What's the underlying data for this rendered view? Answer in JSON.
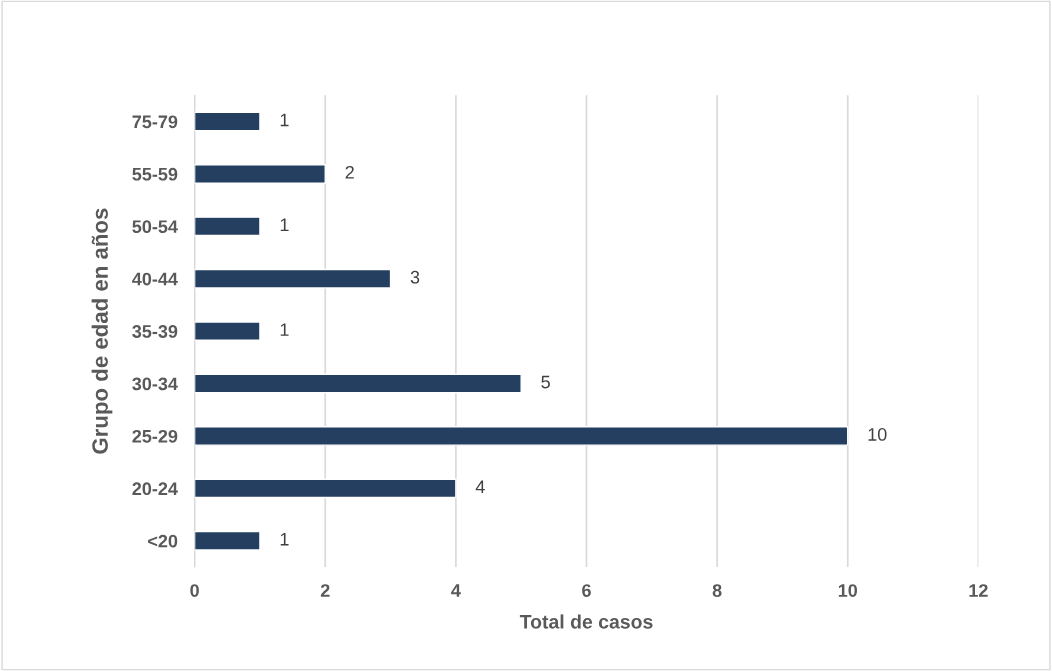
{
  "chart_data": {
    "type": "bar",
    "orientation": "horizontal",
    "xlabel": "Total de casos",
    "ylabel": "Grupo de edad en años",
    "categories": [
      "75-79",
      "55-59",
      "50-54",
      "40-44",
      "35-39",
      "30-34",
      "25-29",
      "20-24",
      "<20"
    ],
    "values": [
      1,
      2,
      1,
      3,
      1,
      5,
      10,
      4,
      1
    ],
    "color": "#243f60",
    "xlim": [
      0,
      12
    ],
    "xticks": [
      0,
      2,
      4,
      6,
      8,
      10,
      12
    ],
    "grid": "x",
    "data_labels": true,
    "legend": false
  }
}
